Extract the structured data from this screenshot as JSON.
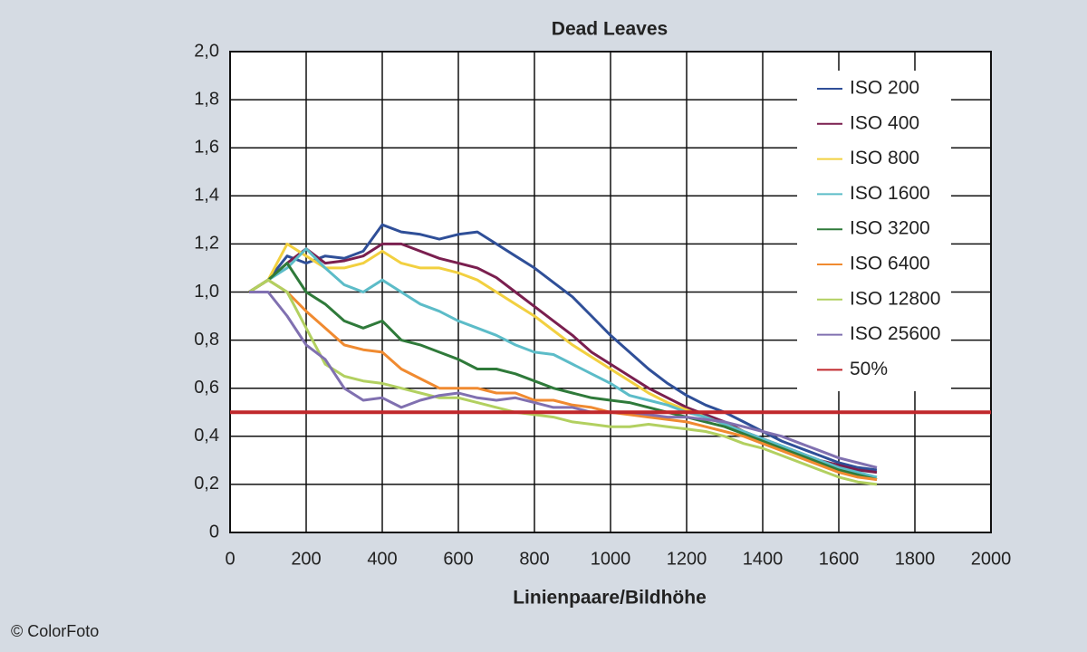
{
  "chart_data": {
    "type": "line",
    "title": "Dead Leaves",
    "x_label": "Linienpaare/Bildhöhe",
    "credit": "© ColorFoto",
    "x": [
      50,
      100,
      150,
      200,
      250,
      300,
      350,
      400,
      450,
      500,
      550,
      600,
      650,
      700,
      750,
      800,
      850,
      900,
      950,
      1000,
      1050,
      1100,
      1150,
      1200,
      1250,
      1300,
      1350,
      1400,
      1450,
      1500,
      1550,
      1600,
      1650,
      1700
    ],
    "series": [
      {
        "name": "ISO 200",
        "color": "#2f4f98",
        "values": [
          1.0,
          1.05,
          1.15,
          1.12,
          1.15,
          1.14,
          1.17,
          1.28,
          1.25,
          1.24,
          1.22,
          1.24,
          1.25,
          1.2,
          1.15,
          1.1,
          1.04,
          0.98,
          0.9,
          0.82,
          0.75,
          0.68,
          0.62,
          0.57,
          0.53,
          0.5,
          0.46,
          0.42,
          0.38,
          0.35,
          0.32,
          0.29,
          0.27,
          0.26
        ]
      },
      {
        "name": "ISO 400",
        "color": "#7a1f4f",
        "values": [
          1.0,
          1.05,
          1.12,
          1.18,
          1.12,
          1.13,
          1.15,
          1.2,
          1.2,
          1.17,
          1.14,
          1.12,
          1.1,
          1.06,
          1.0,
          0.94,
          0.88,
          0.82,
          0.75,
          0.7,
          0.65,
          0.6,
          0.56,
          0.52,
          0.49,
          0.46,
          0.42,
          0.39,
          0.36,
          0.33,
          0.3,
          0.28,
          0.26,
          0.25
        ]
      },
      {
        "name": "ISO 800",
        "color": "#f2d040",
        "values": [
          1.0,
          1.05,
          1.2,
          1.15,
          1.1,
          1.1,
          1.12,
          1.17,
          1.12,
          1.1,
          1.1,
          1.08,
          1.05,
          1.0,
          0.95,
          0.9,
          0.84,
          0.78,
          0.73,
          0.68,
          0.63,
          0.58,
          0.54,
          0.51,
          0.48,
          0.45,
          0.42,
          0.38,
          0.35,
          0.32,
          0.29,
          0.26,
          0.24,
          0.23
        ]
      },
      {
        "name": "ISO 1600",
        "color": "#5cbcc8",
        "values": [
          1.0,
          1.05,
          1.1,
          1.18,
          1.1,
          1.03,
          1.0,
          1.05,
          1.0,
          0.95,
          0.92,
          0.88,
          0.85,
          0.82,
          0.78,
          0.75,
          0.74,
          0.7,
          0.66,
          0.62,
          0.57,
          0.55,
          0.53,
          0.5,
          0.48,
          0.45,
          0.42,
          0.39,
          0.36,
          0.33,
          0.3,
          0.27,
          0.25,
          0.23
        ]
      },
      {
        "name": "ISO 3200",
        "color": "#2f7a3a",
        "values": [
          1.0,
          1.05,
          1.12,
          1.0,
          0.95,
          0.88,
          0.85,
          0.88,
          0.8,
          0.78,
          0.75,
          0.72,
          0.68,
          0.68,
          0.66,
          0.63,
          0.6,
          0.58,
          0.56,
          0.55,
          0.54,
          0.52,
          0.5,
          0.48,
          0.46,
          0.44,
          0.41,
          0.38,
          0.35,
          0.32,
          0.29,
          0.26,
          0.24,
          0.22
        ]
      },
      {
        "name": "ISO 6400",
        "color": "#f08a30",
        "values": [
          1.0,
          1.05,
          1.0,
          0.92,
          0.85,
          0.78,
          0.76,
          0.75,
          0.68,
          0.64,
          0.6,
          0.6,
          0.6,
          0.58,
          0.58,
          0.55,
          0.55,
          0.53,
          0.52,
          0.5,
          0.49,
          0.48,
          0.47,
          0.46,
          0.44,
          0.42,
          0.4,
          0.37,
          0.34,
          0.31,
          0.28,
          0.25,
          0.23,
          0.22
        ]
      },
      {
        "name": "ISO 12800",
        "color": "#b2d060",
        "values": [
          1.0,
          1.05,
          1.0,
          0.85,
          0.7,
          0.65,
          0.63,
          0.62,
          0.6,
          0.58,
          0.56,
          0.56,
          0.54,
          0.52,
          0.5,
          0.49,
          0.48,
          0.46,
          0.45,
          0.44,
          0.44,
          0.45,
          0.44,
          0.43,
          0.42,
          0.4,
          0.37,
          0.35,
          0.32,
          0.29,
          0.26,
          0.23,
          0.21,
          0.2
        ]
      },
      {
        "name": "ISO 25600",
        "color": "#8070b0",
        "values": [
          1.0,
          1.0,
          0.9,
          0.78,
          0.72,
          0.6,
          0.55,
          0.56,
          0.52,
          0.55,
          0.57,
          0.58,
          0.56,
          0.55,
          0.56,
          0.54,
          0.52,
          0.52,
          0.5,
          0.5,
          0.5,
          0.49,
          0.48,
          0.48,
          0.47,
          0.46,
          0.44,
          0.42,
          0.4,
          0.37,
          0.34,
          0.31,
          0.29,
          0.27
        ]
      }
    ],
    "reference": {
      "name": "50%",
      "color": "#c0282c",
      "value": 0.5
    },
    "xlim": [
      0,
      2000
    ],
    "xticks": [
      0,
      200,
      400,
      600,
      800,
      1000,
      1200,
      1400,
      1600,
      1800,
      2000
    ],
    "ylim": [
      0,
      2
    ],
    "yticks": [
      0,
      {
        "value": 0.2,
        "label": "0,2"
      },
      {
        "value": 0.4,
        "label": "0,4"
      },
      {
        "value": 0.6,
        "label": "0,6"
      },
      {
        "value": 0.8,
        "label": "0,8"
      },
      {
        "value": 1.0,
        "label": "1,0"
      },
      {
        "value": 1.2,
        "label": "1,2"
      },
      {
        "value": 1.4,
        "label": "1,4"
      },
      {
        "value": 1.6,
        "label": "1,6"
      },
      {
        "value": 1.8,
        "label": "1,8"
      },
      {
        "value": 2.0,
        "label": "2,0"
      }
    ],
    "grid": true
  }
}
